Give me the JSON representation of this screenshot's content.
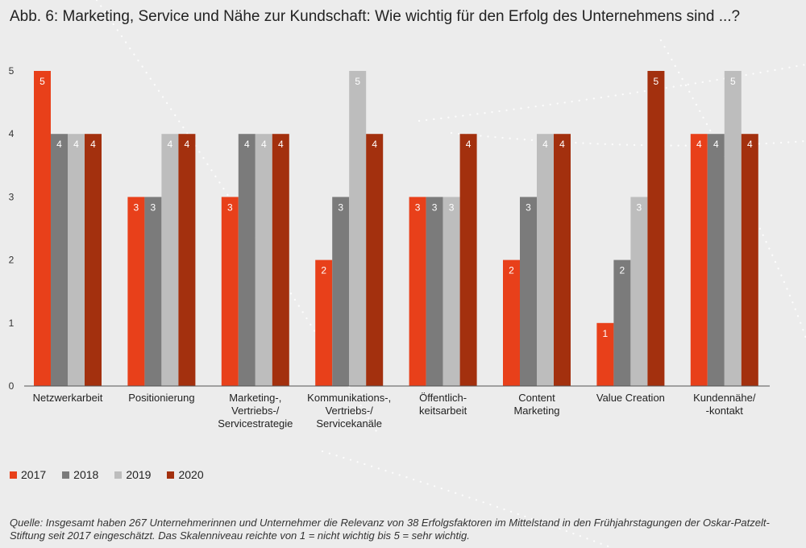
{
  "title": "Abb. 6: Marketing, Service und Nähe zur Kundschaft: Wie wichtig für den Erfolg des Unternehmens sind ...?",
  "source": "Quelle: Insgesamt haben 267 Unternehmerinnen und Unternehmer die Relevanz von 38 Erfolgsfaktoren im Mittelstand in den Frühjahrstagungen der Oskar-Patzelt-Stiftung seit 2017 eingeschätzt. Das Skalenniveau reichte von 1 = nicht wichtig bis 5 = sehr wichtig.",
  "colors": {
    "2017": "#e8401a",
    "2018": "#7b7b7b",
    "2019": "#bdbdbd",
    "2020": "#a3300e",
    "background": "#ececec"
  },
  "chart_data": {
    "type": "bar",
    "title": "Abb. 6: Marketing, Service und Nähe zur Kundschaft: Wie wichtig für den Erfolg des Unternehmens sind ...?",
    "categories": [
      [
        "Netzwerkarbeit"
      ],
      [
        "Positionierung"
      ],
      [
        "Marketing-,",
        "Vertriebs-/",
        "Servicestrategie"
      ],
      [
        "Kommunikations-,",
        "Vertriebs-/",
        "Servicekanäle"
      ],
      [
        "Öffentlich-",
        "keitsarbeit"
      ],
      [
        "Content",
        "Marketing"
      ],
      [
        "Value Creation"
      ],
      [
        "Kundennähe/",
        "-kontakt"
      ]
    ],
    "series": [
      {
        "name": "2017",
        "values": [
          5,
          3,
          3,
          2,
          3,
          2,
          1,
          4
        ]
      },
      {
        "name": "2018",
        "values": [
          4,
          3,
          4,
          3,
          3,
          3,
          2,
          4
        ]
      },
      {
        "name": "2019",
        "values": [
          4,
          4,
          4,
          5,
          3,
          4,
          3,
          5
        ]
      },
      {
        "name": "2020",
        "values": [
          4,
          4,
          4,
          4,
          4,
          4,
          5,
          4
        ]
      }
    ],
    "yticks": [
      0,
      1,
      2,
      3,
      4,
      5
    ],
    "ylim": [
      0,
      5
    ],
    "grid": false,
    "legend_position": "bottom-left",
    "data_labels": true
  }
}
